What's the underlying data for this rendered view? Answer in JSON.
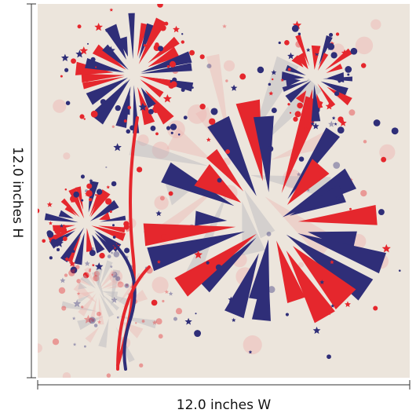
{
  "dimensions": {
    "height_label": "12.0 inches H",
    "width_label": "12.0 inches W"
  }
}
